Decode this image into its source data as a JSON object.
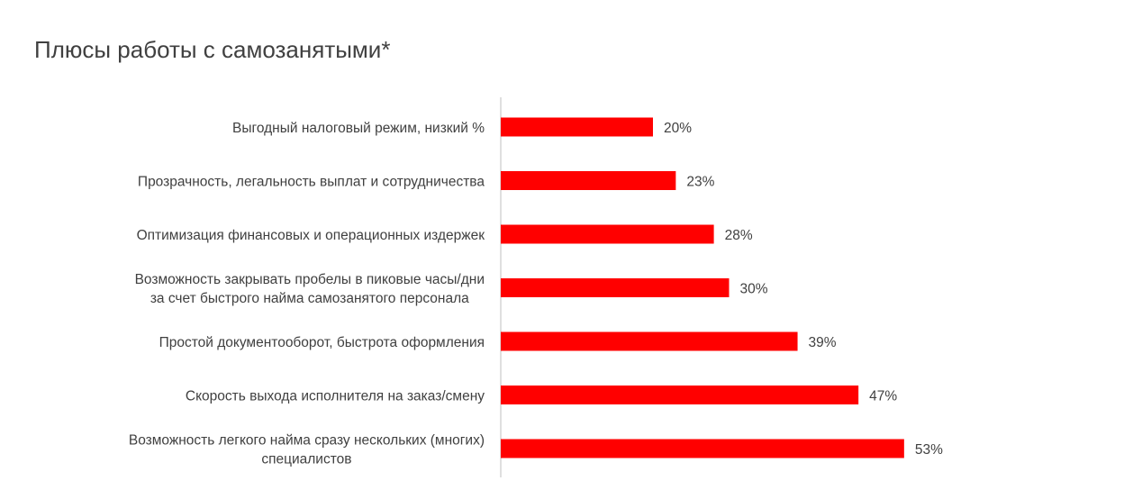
{
  "colors": {
    "bar": "#ff0000",
    "text": "#404040",
    "axis": "#bfbfbf",
    "background": "#ffffff"
  },
  "chart_data": {
    "type": "bar",
    "orientation": "horizontal",
    "title": "Плюсы работы с самозанятыми*",
    "xlabel": "",
    "ylabel": "",
    "xlim": [
      0,
      60
    ],
    "grid": false,
    "legend": "none",
    "categories": [
      [
        "Выгодный налоговый режим, низкий %"
      ],
      [
        "Прозрачность, легальность выплат и сотрудничества"
      ],
      [
        "Оптимизация финансовых и операционных издержек"
      ],
      [
        "Возможность закрывать пробелы в пиковые часы/дни",
        "за счет быстрого найма самозанятого персонала"
      ],
      [
        "Простой документооборот, быстрота оформления"
      ],
      [
        "Скорость выхода исполнителя на заказ/смену"
      ],
      [
        "Возможность легкого найма сразу нескольких (многих)",
        "специалистов"
      ]
    ],
    "values": [
      20,
      23,
      28,
      30,
      39,
      47,
      53
    ],
    "value_labels": [
      "20%",
      "23%",
      "28%",
      "30%",
      "39%",
      "47%",
      "53%"
    ]
  }
}
